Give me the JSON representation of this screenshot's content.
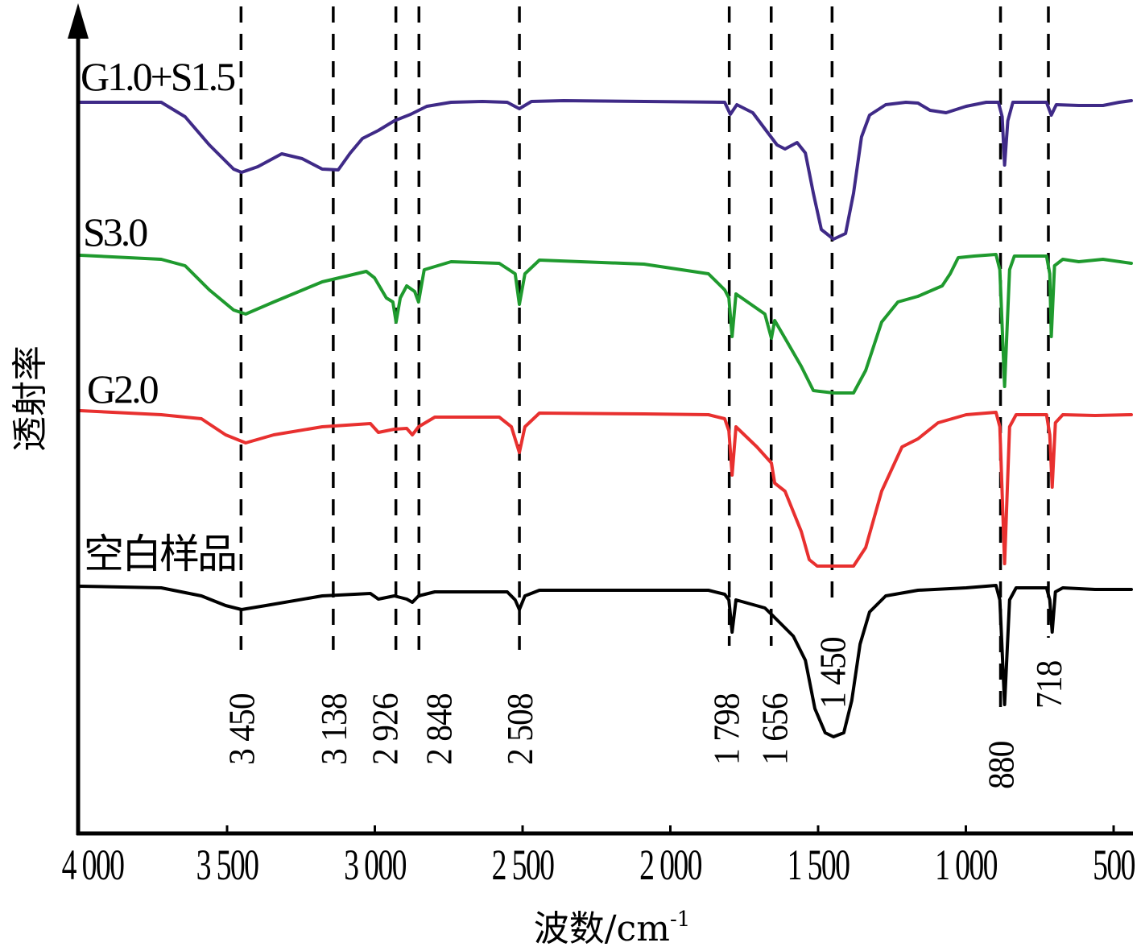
{
  "chart_data": {
    "type": "line",
    "title": "",
    "xlabel": "波数/cm",
    "xlabel_superscript": "-1",
    "ylabel": "透射率",
    "xlim": [
      4000,
      440
    ],
    "x_reversed": true,
    "ylim": [
      0,
      102.5
    ],
    "y_ticks_shown": false,
    "grid": false,
    "legend": "none; series labels printed above each curve",
    "x_ticks": [
      {
        "value": 4000,
        "label": "4 000"
      },
      {
        "value": 3500,
        "label": "3 500"
      },
      {
        "value": 3000,
        "label": "3 000"
      },
      {
        "value": 2500,
        "label": "2 500"
      },
      {
        "value": 2000,
        "label": "2 000"
      },
      {
        "value": 1500,
        "label": "1 500"
      },
      {
        "value": 1000,
        "label": "1 000"
      },
      {
        "value": 500,
        "label": "500"
      }
    ],
    "reference_lines": [
      {
        "value": 3450,
        "label": "3 450"
      },
      {
        "value": 3138,
        "label": "3 138"
      },
      {
        "value": 2926,
        "label": "2 926"
      },
      {
        "value": 2848,
        "label": "2 848"
      },
      {
        "value": 2508,
        "label": "2 508"
      },
      {
        "value": 1798,
        "label": "1 798"
      },
      {
        "value": 1656,
        "label": "1 656"
      },
      {
        "value": 1450,
        "label": "1 450"
      },
      {
        "value": 880,
        "label": "880"
      },
      {
        "value": 718,
        "label": "718"
      }
    ],
    "series": [
      {
        "name": "G1.0+S1.5",
        "color": "#3f2a87",
        "points": [
          [
            3996,
            90.8
          ],
          [
            3723,
            90.8
          ],
          [
            3642,
            89
          ],
          [
            3560,
            85.5
          ],
          [
            3478,
            82.5
          ],
          [
            3451,
            82.1
          ],
          [
            3396,
            82.8
          ],
          [
            3315,
            84.4
          ],
          [
            3246,
            83.8
          ],
          [
            3178,
            82.5
          ],
          [
            3124,
            82.4
          ],
          [
            3083,
            84.5
          ],
          [
            3042,
            86.3
          ],
          [
            2988,
            87.3
          ],
          [
            2934,
            88.5
          ],
          [
            2879,
            89.3
          ],
          [
            2824,
            90.3
          ],
          [
            2742,
            90.8
          ],
          [
            2636,
            90.9
          ],
          [
            2552,
            90.8
          ],
          [
            2511,
            90
          ],
          [
            2470,
            90.9
          ],
          [
            2361,
            91
          ],
          [
            1816,
            90.8
          ],
          [
            1797,
            89.3
          ],
          [
            1775,
            90.5
          ],
          [
            1721,
            89.5
          ],
          [
            1680,
            87.5
          ],
          [
            1639,
            85.5
          ],
          [
            1612,
            85
          ],
          [
            1571,
            85.8
          ],
          [
            1543,
            84.5
          ],
          [
            1516,
            79.5
          ],
          [
            1489,
            75
          ],
          [
            1448,
            73.8
          ],
          [
            1407,
            74.5
          ],
          [
            1380,
            79.5
          ],
          [
            1353,
            86.5
          ],
          [
            1326,
            89.2
          ],
          [
            1271,
            90.5
          ],
          [
            1203,
            90.8
          ],
          [
            1162,
            90.7
          ],
          [
            1121,
            89.8
          ],
          [
            1067,
            89.5
          ],
          [
            999,
            90.3
          ],
          [
            931,
            90.8
          ],
          [
            890,
            90.8
          ],
          [
            877,
            89
          ],
          [
            869,
            83
          ],
          [
            858,
            88.5
          ],
          [
            841,
            90.8
          ],
          [
            754,
            90.8
          ],
          [
            727,
            90.8
          ],
          [
            711,
            89.2
          ],
          [
            694,
            90.5
          ],
          [
            618,
            90.4
          ],
          [
            536,
            90.4
          ],
          [
            481,
            90.8
          ],
          [
            440,
            91
          ]
        ]
      },
      {
        "name": "S3.0",
        "color": "#1f9a2e",
        "points": [
          [
            3996,
            71.8
          ],
          [
            3723,
            71.3
          ],
          [
            3642,
            70.5
          ],
          [
            3560,
            67.5
          ],
          [
            3478,
            65
          ],
          [
            3437,
            64.5
          ],
          [
            3342,
            66
          ],
          [
            3178,
            68.5
          ],
          [
            3029,
            69.8
          ],
          [
            3001,
            69
          ],
          [
            2961,
            66.5
          ],
          [
            2939,
            66
          ],
          [
            2928,
            63.5
          ],
          [
            2914,
            66.5
          ],
          [
            2892,
            68
          ],
          [
            2865,
            67.3
          ],
          [
            2852,
            66
          ],
          [
            2833,
            70
          ],
          [
            2742,
            71
          ],
          [
            2579,
            70.8
          ],
          [
            2525,
            69.5
          ],
          [
            2511,
            65.7
          ],
          [
            2492,
            69.5
          ],
          [
            2443,
            71.2
          ],
          [
            2089,
            70.7
          ],
          [
            1871,
            69.5
          ],
          [
            1816,
            67.5
          ],
          [
            1802,
            66.5
          ],
          [
            1791,
            61.7
          ],
          [
            1778,
            67
          ],
          [
            1680,
            64.5
          ],
          [
            1658,
            61.5
          ],
          [
            1647,
            63.7
          ],
          [
            1612,
            61.5
          ],
          [
            1557,
            58
          ],
          [
            1516,
            55
          ],
          [
            1448,
            54.7
          ],
          [
            1380,
            54.7
          ],
          [
            1339,
            57.5
          ],
          [
            1285,
            63.5
          ],
          [
            1230,
            66
          ],
          [
            1162,
            66.7
          ],
          [
            1080,
            68
          ],
          [
            1053,
            69.5
          ],
          [
            1026,
            71.5
          ],
          [
            972,
            71.7
          ],
          [
            898,
            71.9
          ],
          [
            885,
            70
          ],
          [
            869,
            55.5
          ],
          [
            852,
            70
          ],
          [
            836,
            71.7
          ],
          [
            727,
            71.7
          ],
          [
            716,
            69.5
          ],
          [
            711,
            61.7
          ],
          [
            700,
            70.5
          ],
          [
            672,
            71.3
          ],
          [
            618,
            71
          ],
          [
            536,
            71.3
          ],
          [
            440,
            70.8
          ]
        ]
      },
      {
        "name": "G2.0",
        "color": "#e8302f",
        "points": [
          [
            3996,
            52.5
          ],
          [
            3723,
            52
          ],
          [
            3587,
            51.5
          ],
          [
            3505,
            49.5
          ],
          [
            3437,
            48.5
          ],
          [
            3342,
            49.5
          ],
          [
            3178,
            50.5
          ],
          [
            3015,
            50.9
          ],
          [
            2988,
            49.8
          ],
          [
            2934,
            50.2
          ],
          [
            2892,
            50.3
          ],
          [
            2873,
            49.5
          ],
          [
            2852,
            50.5
          ],
          [
            2797,
            51.7
          ],
          [
            2579,
            51.7
          ],
          [
            2538,
            50.5
          ],
          [
            2511,
            47.3
          ],
          [
            2492,
            50.5
          ],
          [
            2443,
            52.2
          ],
          [
            2089,
            52.1
          ],
          [
            1871,
            52
          ],
          [
            1816,
            51.5
          ],
          [
            1802,
            50
          ],
          [
            1791,
            44.5
          ],
          [
            1778,
            50.5
          ],
          [
            1707,
            48
          ],
          [
            1658,
            46
          ],
          [
            1647,
            43.5
          ],
          [
            1612,
            42.5
          ],
          [
            1557,
            37.5
          ],
          [
            1530,
            34
          ],
          [
            1503,
            33.2
          ],
          [
            1380,
            33.2
          ],
          [
            1339,
            35.5
          ],
          [
            1285,
            42.5
          ],
          [
            1216,
            48
          ],
          [
            1162,
            49
          ],
          [
            1094,
            51
          ],
          [
            999,
            52
          ],
          [
            898,
            52.3
          ],
          [
            885,
            50.5
          ],
          [
            869,
            33.5
          ],
          [
            852,
            50.5
          ],
          [
            830,
            52
          ],
          [
            727,
            52
          ],
          [
            716,
            49.5
          ],
          [
            708,
            43
          ],
          [
            697,
            51
          ],
          [
            672,
            52
          ],
          [
            563,
            51.9
          ],
          [
            440,
            52
          ]
        ]
      },
      {
        "name": "空白样品",
        "color": "#000000",
        "points": [
          [
            3996,
            30.7
          ],
          [
            3723,
            30.5
          ],
          [
            3587,
            29.5
          ],
          [
            3505,
            28.3
          ],
          [
            3451,
            27.8
          ],
          [
            3369,
            28.3
          ],
          [
            3178,
            29.5
          ],
          [
            3015,
            29.8
          ],
          [
            2988,
            29.1
          ],
          [
            2934,
            29.5
          ],
          [
            2892,
            29.1
          ],
          [
            2873,
            28.7
          ],
          [
            2852,
            29.5
          ],
          [
            2797,
            30
          ],
          [
            2552,
            30
          ],
          [
            2525,
            29
          ],
          [
            2511,
            27.8
          ],
          [
            2492,
            29.5
          ],
          [
            2443,
            30.2
          ],
          [
            1871,
            30.2
          ],
          [
            1816,
            29.7
          ],
          [
            1802,
            29
          ],
          [
            1791,
            25
          ],
          [
            1778,
            29
          ],
          [
            1680,
            28
          ],
          [
            1652,
            27
          ],
          [
            1584,
            24.5
          ],
          [
            1543,
            21.5
          ],
          [
            1511,
            15.5
          ],
          [
            1476,
            12.5
          ],
          [
            1448,
            12
          ],
          [
            1413,
            12.5
          ],
          [
            1386,
            16.5
          ],
          [
            1358,
            23.5
          ],
          [
            1326,
            27.5
          ],
          [
            1271,
            29.5
          ],
          [
            1162,
            30.2
          ],
          [
            999,
            30.5
          ],
          [
            898,
            30.8
          ],
          [
            885,
            29
          ],
          [
            869,
            16
          ],
          [
            852,
            29
          ],
          [
            830,
            30.5
          ],
          [
            727,
            30.5
          ],
          [
            716,
            29
          ],
          [
            708,
            25
          ],
          [
            697,
            30
          ],
          [
            672,
            30.5
          ],
          [
            563,
            30.3
          ],
          [
            440,
            30.3
          ]
        ]
      }
    ]
  }
}
